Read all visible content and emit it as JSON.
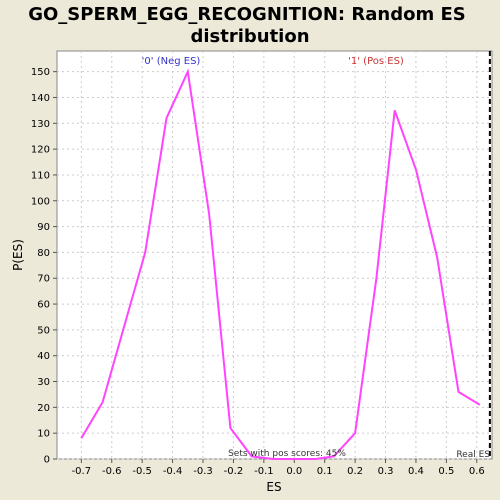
{
  "chart_data": {
    "type": "line",
    "title_line1": "GO_SPERM_EGG_RECOGNITION: Random ES",
    "title_line2": "distribution",
    "xlabel": "ES",
    "ylabel": "P(ES)",
    "xlim": [
      -0.78,
      0.65
    ],
    "ylim": [
      0,
      158
    ],
    "x_ticks": [
      "-0.7",
      "-0.6",
      "-0.5",
      "-0.4",
      "-0.3",
      "-0.2",
      "-0.1",
      "0.0",
      "0.1",
      "0.2",
      "0.3",
      "0.4",
      "0.5",
      "0.6"
    ],
    "x_tick_values": [
      -0.7,
      -0.6,
      -0.5,
      -0.4,
      -0.3,
      -0.2,
      -0.1,
      0.0,
      0.1,
      0.2,
      0.3,
      0.4,
      0.5,
      0.6
    ],
    "y_ticks": [
      "0",
      "10",
      "20",
      "30",
      "40",
      "50",
      "60",
      "70",
      "80",
      "90",
      "100",
      "110",
      "120",
      "130",
      "140",
      "150"
    ],
    "y_tick_values": [
      0,
      10,
      20,
      30,
      40,
      50,
      60,
      70,
      80,
      90,
      100,
      110,
      120,
      130,
      140,
      150
    ],
    "grid": true,
    "series_color": "#ff44ff",
    "series": [
      {
        "x": [
          -0.7,
          -0.63,
          -0.56,
          -0.49,
          -0.42,
          -0.35,
          -0.28,
          -0.21,
          -0.14,
          -0.07,
          0.0,
          0.07,
          0.13,
          0.2,
          0.27,
          0.33,
          0.4,
          0.47,
          0.54,
          0.61
        ],
        "y": [
          8,
          22,
          51,
          80,
          132,
          150,
          95,
          12,
          1,
          0,
          0,
          0,
          1,
          10,
          70,
          135,
          112,
          78,
          26,
          21
        ]
      }
    ],
    "neg_label": "'0' (Neg ES)",
    "neg_label_color": "#3333cc",
    "pos_label": "'1' (Pos ES)",
    "pos_label_color": "#cc3333",
    "pos_scores_label": "Sets with pos scores: 45%",
    "real_es_label": "Real ES",
    "real_es_value": 0.643
  }
}
